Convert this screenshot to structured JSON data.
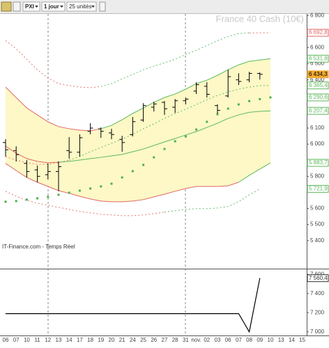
{
  "toolbar": {
    "symbol": "PXI",
    "period": "1 jour",
    "units": "25 unités"
  },
  "chart_data": [
    {
      "type": "ohlc",
      "title": "France 40 Cash (10€)",
      "source": "IT-Finance.com - Temps Réel",
      "categories": [
        "06",
        "07",
        "10",
        "11",
        "12",
        "13",
        "14",
        "17",
        "18",
        "19",
        "20",
        "21",
        "24",
        "25",
        "26",
        "27",
        "28",
        "31",
        "nov.",
        "02",
        "03",
        "06",
        "07",
        "08",
        "09",
        "10",
        "13",
        "14",
        "15"
      ],
      "open": [
        6010,
        5960,
        5880,
        5840,
        5810,
        5830,
        5960,
        5950,
        6080,
        6095,
        6070,
        6030,
        6060,
        6150,
        6230,
        6260,
        6230,
        6270,
        6330,
        6360,
        6240,
        6300,
        6400,
        6400,
        6440,
        null,
        null,
        null,
        null
      ],
      "high": [
        6031,
        5987,
        5901,
        5867,
        5880,
        5893,
        6044,
        6061,
        6130,
        6104,
        6096,
        6052,
        6169,
        6255,
        6264,
        6268,
        6281,
        6290,
        6385,
        6385,
        6247,
        6463,
        6441,
        6450,
        6446,
        null,
        null,
        null,
        null
      ],
      "low": [
        5923,
        5892,
        5793,
        5763,
        5780,
        5707,
        5910,
        5923,
        6061,
        6039,
        6031,
        5953,
        6048,
        6139,
        6203,
        6182,
        6195,
        6247,
        6312,
        6290,
        6191,
        6290,
        6368,
        6385,
        6402,
        null,
        null,
        null,
        null
      ],
      "close": [
        5965,
        5935,
        5830,
        5800,
        5830,
        5860,
        5950,
        6040,
        6100,
        6080,
        6060,
        6010,
        6140,
        6240,
        6250,
        6220,
        6270,
        6280,
        6370,
        6310,
        6210,
        6420,
        6390,
        6440,
        6434.3,
        null,
        null,
        null,
        null
      ],
      "bar_color": "#000000",
      "series": [
        {
          "style": "dashed",
          "values": [
            6644,
            6593,
            6528,
            6463,
            6411,
            6376,
            6364,
            6355,
            6351,
            6359,
            6376,
            6407,
            6433,
            6463,
            6485,
            6506,
            6528,
            6558,
            6584,
            6614,
            6644,
            6670,
            6688,
            6692,
            6692,
            6692.8,
            null,
            null,
            null
          ],
          "colors": [
            "#e57373",
            "#e57373",
            "#e57373",
            "#e57373",
            "#e57373",
            "#e57373",
            "#e57373",
            "#e57373",
            "#e57373",
            "#66bb6a",
            "#66bb6a",
            "#66bb6a",
            "#66bb6a",
            "#66bb6a",
            "#66bb6a",
            "#66bb6a",
            "#66bb6a",
            "#66bb6a",
            "#66bb6a",
            "#66bb6a",
            "#66bb6a",
            "#66bb6a",
            "#66bb6a",
            "#e57373",
            "#e57373",
            "#e57373",
            null,
            null,
            null
          ]
        },
        {
          "style": "solid",
          "values": [
            6355,
            6290,
            6225,
            6182,
            6139,
            6109,
            6096,
            6087,
            6083,
            6096,
            6117,
            6152,
            6191,
            6225,
            6260,
            6290,
            6312,
            6342,
            6376,
            6398,
            6428,
            6463,
            6493,
            6515,
            6523,
            6531.8,
            null,
            null,
            null
          ],
          "colors": [
            "#e06666",
            "#e06666",
            "#e06666",
            "#e06666",
            "#e06666",
            "#e06666",
            "#e06666",
            "#e06666",
            "#e06666",
            "#5cb85c",
            "#5cb85c",
            "#5cb85c",
            "#5cb85c",
            "#5cb85c",
            "#5cb85c",
            "#5cb85c",
            "#5cb85c",
            "#5cb85c",
            "#5cb85c",
            "#5cb85c",
            "#5cb85c",
            "#5cb85c",
            "#5cb85c",
            "#5cb85c",
            "#5cb85c",
            "#5cb85c",
            null,
            null,
            null
          ]
        },
        {
          "style": "dashed",
          "values": [
            5923,
            5901,
            5884,
            5875,
            5875,
            5884,
            5901,
            5923,
            5953,
            5979,
            6005,
            6031,
            6061,
            6096,
            6126,
            6160,
            6191,
            6217,
            6247,
            6277,
            6303,
            6325,
            6342,
            6355,
            6364,
            6365.4,
            null,
            null,
            null
          ],
          "colors": [
            "#e57373",
            "#e57373",
            "#e57373",
            "#e57373",
            "#e57373",
            "#e57373",
            "#66bb6a",
            "#66bb6a",
            "#66bb6a",
            "#66bb6a",
            "#66bb6a",
            "#66bb6a",
            "#66bb6a",
            "#66bb6a",
            "#66bb6a",
            "#66bb6a",
            "#66bb6a",
            "#66bb6a",
            "#66bb6a",
            "#66bb6a",
            "#66bb6a",
            "#66bb6a",
            "#66bb6a",
            "#66bb6a",
            "#66bb6a",
            "#66bb6a",
            null,
            null,
            null
          ]
        },
        {
          "style": "solid",
          "values": [
            5988,
            5944,
            5910,
            5893,
            5884,
            5888,
            5893,
            5901,
            5910,
            5918,
            5927,
            5936,
            5953,
            5970,
            5992,
            6014,
            6035,
            6057,
            6078,
            6104,
            6130,
            6160,
            6182,
            6198,
            6204,
            6207.4,
            null,
            null,
            null
          ],
          "colors": [
            "#e06666",
            "#e06666",
            "#e06666",
            "#e06666",
            "#e06666",
            "#5cb85c",
            "#5cb85c",
            "#5cb85c",
            "#5cb85c",
            "#5cb85c",
            "#5cb85c",
            "#5cb85c",
            "#5cb85c",
            "#5cb85c",
            "#5cb85c",
            "#5cb85c",
            "#5cb85c",
            "#5cb85c",
            "#5cb85c",
            "#5cb85c",
            "#5cb85c",
            "#5cb85c",
            "#5cb85c",
            "#5cb85c",
            "#5cb85c",
            "#5cb85c",
            null,
            null,
            null
          ]
        },
        {
          "style": "solid",
          "values": [
            5880,
            5836,
            5793,
            5763,
            5737,
            5711,
            5694,
            5676,
            5659,
            5646,
            5642,
            5642,
            5646,
            5655,
            5672,
            5689,
            5707,
            5724,
            5737,
            5737,
            5737,
            5741,
            5763,
            5806,
            5845,
            5883.7,
            null,
            null,
            null
          ],
          "colors": [
            "#e06666",
            "#e06666",
            "#e06666",
            "#e06666",
            "#e06666",
            "#e06666",
            "#e06666",
            "#e06666",
            "#e06666",
            "#e06666",
            "#e06666",
            "#e06666",
            "#e06666",
            "#e06666",
            "#e06666",
            "#e06666",
            "#e06666",
            "#e06666",
            "#e06666",
            "#e06666",
            "#e06666",
            "#e06666",
            "#5cb85c",
            "#5cb85c",
            "#5cb85c",
            "#5cb85c",
            null,
            null,
            null
          ]
        },
        {
          "style": "dashed",
          "values": [
            5707,
            5676,
            5650,
            5633,
            5620,
            5607,
            5594,
            5581,
            5573,
            5564,
            5560,
            5555,
            5555,
            5560,
            5568,
            5577,
            5586,
            5594,
            5599,
            5599,
            5603,
            5612,
            5642,
            5685,
            5721.9,
            null,
            null,
            null,
            null
          ],
          "colors": [
            "#e57373",
            "#e57373",
            "#e57373",
            "#e57373",
            "#e57373",
            "#e57373",
            "#e57373",
            "#e57373",
            "#e57373",
            "#e57373",
            "#e57373",
            "#e57373",
            "#e57373",
            "#e57373",
            "#e57373",
            "#66bb6a",
            "#66bb6a",
            "#66bb6a",
            "#66bb6a",
            "#66bb6a",
            "#66bb6a",
            "#66bb6a",
            "#66bb6a",
            "#66bb6a",
            "#66bb6a",
            null,
            null,
            null,
            null
          ]
        },
        {
          "style": "dots",
          "color": "#4caf50",
          "values": [
            5642,
            5646,
            5655,
            5663,
            5672,
            5685,
            5698,
            5711,
            5724,
            5737,
            5754,
            5793,
            5832,
            5871,
            5918,
            5970,
            6018,
            6048,
            6091,
            6139,
            6186,
            6221,
            6247,
            6268,
            6280,
            6290.6,
            null,
            null,
            null
          ]
        }
      ],
      "fill": {
        "between": [
          1,
          4
        ],
        "color": "#fdf8c6"
      },
      "ylim": [
        5230,
        6810
      ],
      "yticks": [
        {
          "value": 6800,
          "label": "6 800"
        },
        {
          "value": 6600,
          "label": "6 600"
        },
        {
          "value": 6500,
          "label": "6 500"
        },
        {
          "value": 6400,
          "label": "6 400"
        },
        {
          "value": 6100,
          "label": "6 100"
        },
        {
          "value": 6000,
          "label": "6 000"
        },
        {
          "value": 5800,
          "label": "5 800"
        },
        {
          "value": 5600,
          "label": "5 600"
        },
        {
          "value": 5500,
          "label": "5 500"
        },
        {
          "value": 5400,
          "label": "5 400"
        }
      ],
      "price_labels": [
        {
          "value": 6692.8,
          "label": "6 692,8",
          "color": "#e06666"
        },
        {
          "value": 6531.8,
          "label": "6 531,8",
          "color": "#5cb85c"
        },
        {
          "value": 6434.3,
          "label": "6 434,3",
          "color": "#f0a830",
          "filled": true
        },
        {
          "value": 6365.4,
          "label": "6 365,4",
          "color": "#5cb85c"
        },
        {
          "value": 6290.6,
          "label": "6 290,6",
          "color": "#5cb85c"
        },
        {
          "value": 6207.4,
          "label": "6 207,4",
          "color": "#5cb85c"
        },
        {
          "value": 5883.7,
          "label": "5 883,7",
          "color": "#5cb85c"
        },
        {
          "value": 5721.9,
          "label": "5 721,9",
          "color": "#5cb85c"
        }
      ]
    },
    {
      "type": "line",
      "color": "#000000",
      "values": [
        7190,
        7190,
        7190,
        7190,
        7190,
        7190,
        7190,
        7190,
        7190,
        7190,
        7190,
        7190,
        7190,
        7190,
        7190,
        7190,
        7190,
        7190,
        7190,
        7190,
        7190,
        7190,
        7190,
        7000,
        7560.4,
        null,
        null,
        null,
        null
      ],
      "ylim": [
        6962,
        7645
      ],
      "yticks": [
        {
          "value": 7600,
          "label": "7 600"
        },
        {
          "value": 7400,
          "label": "7 400"
        },
        {
          "value": 7200,
          "label": "7 200"
        },
        {
          "value": 7000,
          "label": "7 000"
        }
      ],
      "price_labels": [
        {
          "value": 7560.4,
          "label": "7 560,4",
          "color": "#333333"
        }
      ]
    }
  ]
}
